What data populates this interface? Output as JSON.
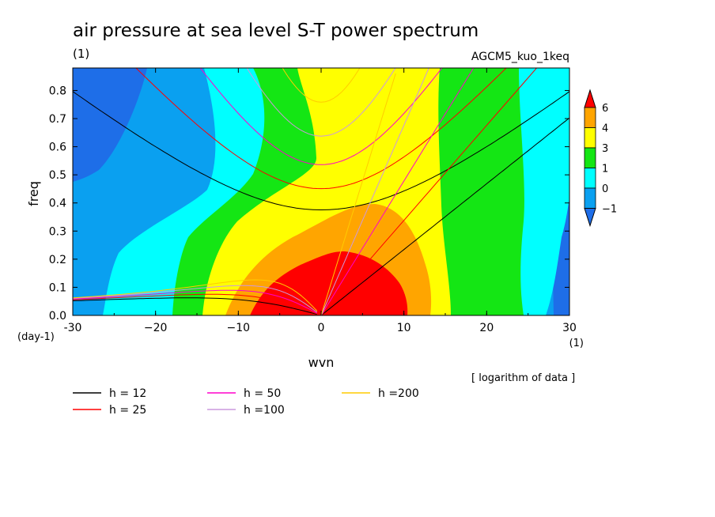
{
  "chart_data": {
    "type": "heatmap",
    "title": "air pressure at sea level S-T power spectrum",
    "title_unit": "(1)",
    "run_label": "AGCM5_kuo_1keq",
    "xlabel": "wvn",
    "ylabel": "freq",
    "x_unit": "(1)",
    "y_unit": "(day-1)",
    "data_note": "[ logarithm of data ]",
    "xlim": [
      -30,
      30
    ],
    "ylim": [
      0,
      0.88
    ],
    "x_ticks": [
      -30,
      -20,
      -10,
      0,
      10,
      20,
      30
    ],
    "x_tick_labels": [
      "-30",
      "−20",
      "−10",
      "0",
      "10",
      "20",
      "30"
    ],
    "y_ticks": [
      0,
      0.1,
      0.2,
      0.3,
      0.4,
      0.5,
      0.6,
      0.7,
      0.8
    ],
    "y_tick_labels": [
      "0.0",
      "0.1",
      "0.2",
      "0.3",
      "0.4",
      "0.5",
      "0.6",
      "0.7",
      "0.8"
    ],
    "color_levels": {
      "labels": [
        "−1",
        "0",
        "1",
        "3",
        "4",
        "6"
      ],
      "colors": [
        "#1e6ee8",
        "#0aa0f0",
        "#00ffff",
        "#14e614",
        "#ffff00",
        "#ffa500",
        "#ff0000"
      ]
    },
    "dispersion_curves": {
      "equivalent_depths": [
        12,
        25,
        50,
        100,
        200
      ],
      "colors": [
        "#000000",
        "#ff0000",
        "#ff00cc",
        "#cc99dd",
        "#ffcc00"
      ],
      "legend_labels": [
        "h = 12",
        "h = 25",
        "h = 50",
        "h =100",
        "h =200"
      ]
    }
  }
}
